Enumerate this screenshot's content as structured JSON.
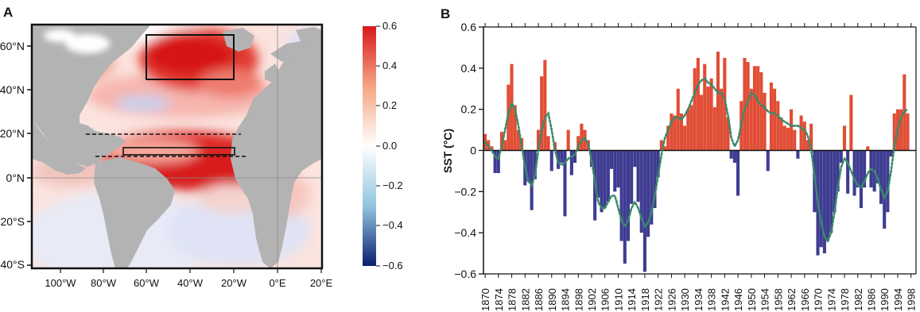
{
  "panel_a": {
    "letter": "A",
    "lat_ticks": [
      "60°N",
      "40°N",
      "20°N",
      "0°N",
      "20°S",
      "40°S"
    ],
    "lon_ticks": [
      "100°W",
      "80°W",
      "60°W",
      "40°W",
      "20°W",
      "0°E",
      "20°E"
    ],
    "colorbar": {
      "ticks": [
        "0.6",
        "0.4",
        "0.2",
        "0.0",
        "−0.2",
        "−0.4",
        "−0.6"
      ],
      "colors": [
        "#d7191c",
        "#f4a582",
        "#ffffff",
        "#92c5de",
        "#0b1f70"
      ]
    },
    "colors": {
      "land": "#b3b3b3",
      "box": "#111111"
    }
  },
  "chart_data": {
    "type": "bar",
    "letter": "B",
    "ylabel": "SST (°C)",
    "ylim": [
      -0.6,
      0.6
    ],
    "y_ticks": [
      "0.6",
      "0.4",
      "0.2",
      "0",
      "−0.2",
      "−0.4",
      "−0.6"
    ],
    "y_tick_values": [
      0.6,
      0.4,
      0.2,
      0,
      -0.2,
      -0.4,
      -0.6
    ],
    "x_ticks": [
      "1870",
      "1874",
      "1878",
      "1882",
      "1886",
      "1890",
      "1894",
      "1898",
      "1902",
      "1906",
      "1910",
      "1914",
      "1918",
      "1922",
      "1926",
      "1930",
      "1934",
      "1938",
      "1942",
      "1946",
      "1950",
      "1954",
      "1958",
      "1962",
      "1966",
      "1970",
      "1974",
      "1978",
      "1982",
      "1986",
      "1990",
      "1994",
      "1998"
    ],
    "x_range": [
      1870,
      1999
    ],
    "colors": {
      "positive": "#e04e35",
      "negative": "#3e3c91",
      "smooth": "#3a8a6a"
    },
    "series": [
      {
        "values": [
          0.08,
          0.05,
          0.02,
          -0.11,
          -0.11,
          0.09,
          0.05,
          0.32,
          0.42,
          0.22,
          0.1,
          0.06,
          -0.17,
          -0.15,
          -0.29,
          -0.14,
          0.1,
          0.36,
          0.44,
          0.07,
          -0.1,
          0.04,
          -0.09,
          -0.06,
          -0.32,
          0.1,
          -0.12,
          -0.06,
          0.07,
          0.13,
          0.1,
          0.05,
          -0.08,
          -0.34,
          -0.23,
          -0.3,
          -0.28,
          -0.25,
          -0.09,
          -0.2,
          -0.18,
          -0.44,
          -0.55,
          -0.44,
          -0.26,
          -0.08,
          -0.25,
          -0.4,
          -0.59,
          -0.42,
          -0.36,
          -0.28,
          -0.13,
          0.05,
          0.02,
          0.12,
          0.18,
          0.17,
          0.3,
          0.18,
          0.12,
          0.2,
          0.22,
          0.4,
          0.45,
          0.27,
          0.42,
          0.31,
          0.35,
          0.21,
          0.48,
          0.3,
          0.45,
          0.16,
          -0.04,
          -0.06,
          -0.22,
          0.24,
          0.45,
          0.43,
          0.3,
          0.41,
          0.41,
          0.38,
          0.28,
          -0.1,
          0.33,
          0.3,
          0.24,
          0.16,
          0.12,
          0.11,
          0.2,
          0.1,
          -0.04,
          0.17,
          0.14,
          0.05,
          0.13,
          -0.3,
          -0.51,
          -0.47,
          -0.5,
          -0.44,
          -0.4,
          -0.3,
          -0.2,
          -0.06,
          0.12,
          -0.21,
          0.27,
          -0.22,
          -0.18,
          -0.28,
          -0.18,
          0.02,
          -0.18,
          -0.2,
          -0.16,
          -0.26,
          -0.38,
          -0.3,
          -0.03,
          0.18,
          0.2,
          0.2,
          0.37,
          0.18
        ]
      },
      {
        "values": [
          0.04,
          0.02,
          0.0,
          -0.03,
          -0.04,
          0.02,
          0.1,
          0.18,
          0.23,
          0.2,
          0.12,
          0.02,
          -0.08,
          -0.15,
          -0.17,
          -0.12,
          0.0,
          0.1,
          0.16,
          0.18,
          0.1,
          0.0,
          -0.06,
          -0.07,
          -0.06,
          -0.04,
          -0.03,
          -0.02,
          0.02,
          0.05,
          0.06,
          0.03,
          -0.05,
          -0.15,
          -0.25,
          -0.28,
          -0.28,
          -0.25,
          -0.22,
          -0.22,
          -0.28,
          -0.34,
          -0.37,
          -0.34,
          -0.28,
          -0.25,
          -0.28,
          -0.33,
          -0.37,
          -0.35,
          -0.3,
          -0.22,
          -0.12,
          -0.02,
          0.06,
          0.1,
          0.14,
          0.16,
          0.16,
          0.15,
          0.17,
          0.2,
          0.24,
          0.28,
          0.32,
          0.34,
          0.35,
          0.33,
          0.32,
          0.3,
          0.28,
          0.28,
          0.25,
          0.17,
          0.06,
          0.02,
          0.05,
          0.13,
          0.2,
          0.24,
          0.28,
          0.27,
          0.24,
          0.22,
          0.21,
          0.19,
          0.18,
          0.18,
          0.17,
          0.15,
          0.14,
          0.13,
          0.12,
          0.12,
          0.12,
          0.11,
          0.1,
          0.07,
          0.0,
          -0.12,
          -0.25,
          -0.35,
          -0.42,
          -0.44,
          -0.4,
          -0.3,
          -0.18,
          -0.08,
          -0.04,
          -0.06,
          -0.1,
          -0.14,
          -0.17,
          -0.18,
          -0.15,
          -0.11,
          -0.09,
          -0.1,
          -0.14,
          -0.19,
          -0.23,
          -0.2,
          -0.1,
          0.02,
          0.1,
          0.16,
          0.19,
          0.2
        ]
      }
    ]
  }
}
